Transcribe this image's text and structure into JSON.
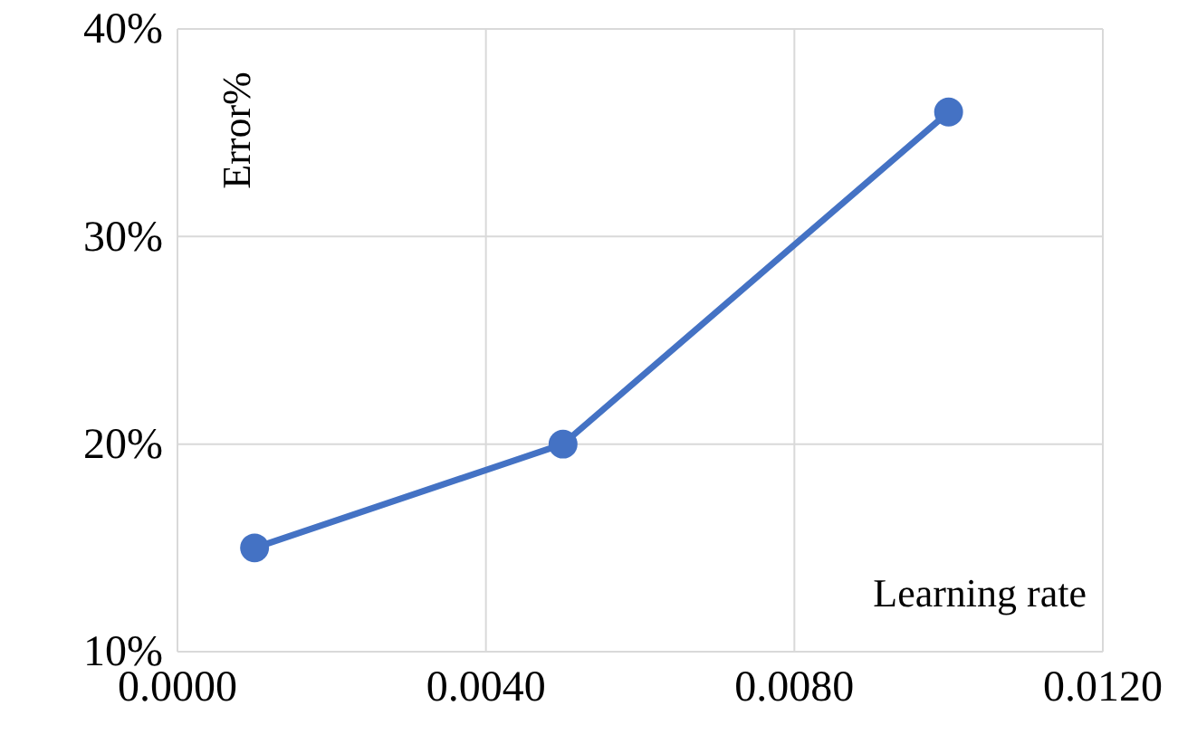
{
  "chart_data": {
    "type": "line",
    "xlabel": "Learning rate",
    "ylabel": "Error%",
    "x": [
      0.001,
      0.005,
      0.01
    ],
    "series": [
      {
        "color": "#4472c4",
        "values": [
          15,
          20,
          36
        ]
      }
    ],
    "xlim": [
      0,
      0.012
    ],
    "xticks": [
      {
        "value": 0,
        "label": "0.0000"
      },
      {
        "value": 0.004,
        "label": "0.0040"
      },
      {
        "value": 0.008,
        "label": "0.0080"
      },
      {
        "value": 0.012,
        "label": "0.0120"
      }
    ],
    "ylim": [
      10,
      40
    ],
    "yticks": [
      {
        "value": 10,
        "label": "10%"
      },
      {
        "value": 20,
        "label": "20%"
      },
      {
        "value": 30,
        "label": "30%"
      },
      {
        "value": 40,
        "label": "40%"
      }
    ],
    "grid": true,
    "marker": "circle",
    "line_style": "solid"
  }
}
